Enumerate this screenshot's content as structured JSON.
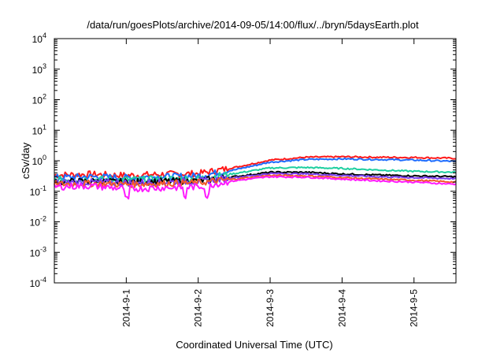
{
  "chart_data": {
    "type": "line",
    "title": "/data/run/goesPlots/archive/2014-09-05/14:00/flux/../bryn/5daysEarth.plot",
    "xlabel": "Coordinated Universal Time (UTC)",
    "ylabel": "cSv/day",
    "yscale": "log",
    "ylim": [
      0.0001,
      10000
    ],
    "xlim": [
      "2014-08-31T00:00",
      "2014-09-05T14:00"
    ],
    "grid": false,
    "legend": "none",
    "y_ticks": [
      {
        "base": "10",
        "exp": "-4"
      },
      {
        "base": "10",
        "exp": "-3"
      },
      {
        "base": "10",
        "exp": "-2"
      },
      {
        "base": "10",
        "exp": "-1"
      },
      {
        "base": "10",
        "exp": "0"
      },
      {
        "base": "10",
        "exp": "1"
      },
      {
        "base": "10",
        "exp": "2"
      },
      {
        "base": "10",
        "exp": "3"
      },
      {
        "base": "10",
        "exp": "4"
      }
    ],
    "x_ticks": [
      {
        "label": "2014-9-1",
        "x": "2014-09-01T00:00"
      },
      {
        "label": "2014-9-2",
        "x": "2014-09-02T00:00"
      },
      {
        "label": "2014-9-3",
        "x": "2014-09-03T00:00"
      },
      {
        "label": "2014-9-4",
        "x": "2014-09-04T00:00"
      },
      {
        "label": "2014-9-5",
        "x": "2014-09-05T00:00"
      }
    ],
    "series": [
      {
        "color": "#ff1a1a",
        "x": [
          "2014-08-31T00:00",
          "2014-08-31T12:00",
          "2014-09-01T00:00",
          "2014-09-01T12:00",
          "2014-09-02T00:00",
          "2014-09-02T12:00",
          "2014-09-03T00:00",
          "2014-09-03T12:00",
          "2014-09-04T00:00",
          "2014-09-04T12:00",
          "2014-09-05T00:00",
          "2014-09-05T14:00"
        ],
        "y": [
          0.34,
          0.36,
          0.33,
          0.36,
          0.38,
          0.6,
          1.05,
          1.3,
          1.35,
          1.3,
          1.28,
          1.2
        ]
      },
      {
        "color": "#1e6cff",
        "x": [
          "2014-08-31T00:00",
          "2014-08-31T12:00",
          "2014-09-01T00:00",
          "2014-09-01T12:00",
          "2014-09-02T00:00",
          "2014-09-02T12:00",
          "2014-09-03T00:00",
          "2014-09-03T12:00",
          "2014-09-04T00:00",
          "2014-09-04T12:00",
          "2014-09-05T00:00",
          "2014-09-05T14:00"
        ],
        "y": [
          0.28,
          0.3,
          0.28,
          0.3,
          0.32,
          0.5,
          0.9,
          1.1,
          1.15,
          1.1,
          1.05,
          0.95
        ]
      },
      {
        "color": "#1fcfa0",
        "x": [
          "2014-08-31T00:00",
          "2014-08-31T12:00",
          "2014-09-01T00:00",
          "2014-09-01T12:00",
          "2014-09-02T00:00",
          "2014-09-02T12:00",
          "2014-09-03T00:00",
          "2014-09-03T12:00",
          "2014-09-04T00:00",
          "2014-09-04T12:00",
          "2014-09-05T00:00",
          "2014-09-05T14:00"
        ],
        "y": [
          0.24,
          0.25,
          0.24,
          0.25,
          0.26,
          0.38,
          0.58,
          0.6,
          0.56,
          0.5,
          0.45,
          0.42
        ]
      },
      {
        "color": "#000000",
        "x": [
          "2014-08-31T00:00",
          "2014-08-31T12:00",
          "2014-09-01T00:00",
          "2014-09-01T12:00",
          "2014-09-02T00:00",
          "2014-09-02T12:00",
          "2014-09-03T00:00",
          "2014-09-03T12:00",
          "2014-09-04T00:00",
          "2014-09-04T12:00",
          "2014-09-05T00:00",
          "2014-09-05T14:00"
        ],
        "y": [
          0.2,
          0.21,
          0.2,
          0.21,
          0.22,
          0.3,
          0.42,
          0.42,
          0.37,
          0.34,
          0.32,
          0.3
        ]
      },
      {
        "color": "#7a3cf0",
        "x": [
          "2014-08-31T00:00",
          "2014-08-31T12:00",
          "2014-09-01T00:00",
          "2014-09-01T12:00",
          "2014-09-02T00:00",
          "2014-09-02T12:00",
          "2014-09-03T00:00",
          "2014-09-03T12:00",
          "2014-09-04T00:00",
          "2014-09-04T12:00",
          "2014-09-05T00:00",
          "2014-09-05T14:00"
        ],
        "y": [
          0.19,
          0.2,
          0.19,
          0.2,
          0.21,
          0.28,
          0.38,
          0.37,
          0.33,
          0.3,
          0.28,
          0.26
        ]
      },
      {
        "color": "#f25a2a",
        "x": [
          "2014-08-31T00:00",
          "2014-08-31T12:00",
          "2014-09-01T00:00",
          "2014-09-01T12:00",
          "2014-09-02T00:00",
          "2014-09-02T12:00",
          "2014-09-03T00:00",
          "2014-09-03T12:00",
          "2014-09-04T00:00",
          "2014-09-04T12:00",
          "2014-09-05T00:00",
          "2014-09-05T14:00"
        ],
        "y": [
          0.17,
          0.18,
          0.17,
          0.18,
          0.19,
          0.25,
          0.33,
          0.32,
          0.28,
          0.25,
          0.23,
          0.2
        ]
      },
      {
        "color": "#ff1aff",
        "x": [
          "2014-08-31T00:00",
          "2014-08-31T12:00",
          "2014-09-01T00:00",
          "2014-09-01T12:00",
          "2014-09-02T00:00",
          "2014-09-02T12:00",
          "2014-09-03T00:00",
          "2014-09-03T12:00",
          "2014-09-04T00:00",
          "2014-09-04T12:00",
          "2014-09-05T00:00",
          "2014-09-05T14:00"
        ],
        "y": [
          0.14,
          0.15,
          0.12,
          0.13,
          0.14,
          0.22,
          0.3,
          0.29,
          0.25,
          0.22,
          0.2,
          0.17
        ]
      }
    ]
  }
}
